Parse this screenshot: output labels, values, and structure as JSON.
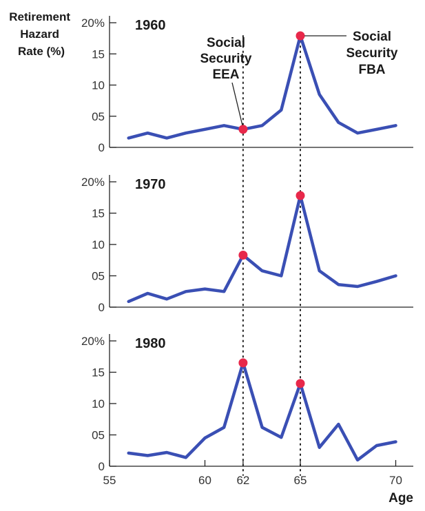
{
  "chart_data": {
    "type": "line",
    "ylabel_lines": [
      "Retirement",
      "Hazard",
      "Rate (%)"
    ],
    "xlabel": "Age",
    "x_ticks": [
      55,
      60,
      62,
      65,
      70
    ],
    "x_tick_labels": [
      "55",
      "60",
      "62",
      "65",
      "70"
    ],
    "xlim": [
      55,
      71
    ],
    "ylim": [
      0,
      20
    ],
    "y_ticks": [
      0,
      5,
      10,
      15,
      20
    ],
    "y_tick_labels": [
      "0",
      "05",
      "10",
      "15",
      "20%"
    ],
    "x": [
      56,
      57,
      58,
      59,
      60,
      61,
      62,
      63,
      64,
      65,
      66,
      67,
      68,
      69,
      70
    ],
    "line_color": "#3a4fb4",
    "marker_color": "#e8284a",
    "panels": [
      {
        "year": "1960",
        "values": [
          1.5,
          2.3,
          1.5,
          2.3,
          2.9,
          3.5,
          2.9,
          3.5,
          6.0,
          17.9,
          8.5,
          4.0,
          2.3,
          2.9,
          3.5
        ],
        "markers": [
          {
            "x": 62,
            "y": 2.9
          },
          {
            "x": 65,
            "y": 17.9
          }
        ]
      },
      {
        "year": "1970",
        "values": [
          0.9,
          2.2,
          1.3,
          2.5,
          2.9,
          2.5,
          8.3,
          5.8,
          5.0,
          17.8,
          5.8,
          3.6,
          3.3,
          4.1,
          5.0
        ],
        "markers": [
          {
            "x": 62,
            "y": 8.3
          },
          {
            "x": 65,
            "y": 17.8
          }
        ]
      },
      {
        "year": "1980",
        "values": [
          2.1,
          1.7,
          2.2,
          1.4,
          4.5,
          6.2,
          16.5,
          6.2,
          4.6,
          13.2,
          3.0,
          6.7,
          1.0,
          3.3,
          3.9
        ],
        "markers": [
          {
            "x": 62,
            "y": 16.5
          },
          {
            "x": 65,
            "y": 13.2
          }
        ]
      }
    ],
    "annotations": [
      {
        "lines": [
          "Social",
          "Security",
          "EEA"
        ],
        "target_x": 62
      },
      {
        "lines": [
          "Social",
          "Security",
          "FBA"
        ],
        "target_x": 65
      }
    ],
    "guide_lines_at_x": [
      62,
      65
    ]
  }
}
